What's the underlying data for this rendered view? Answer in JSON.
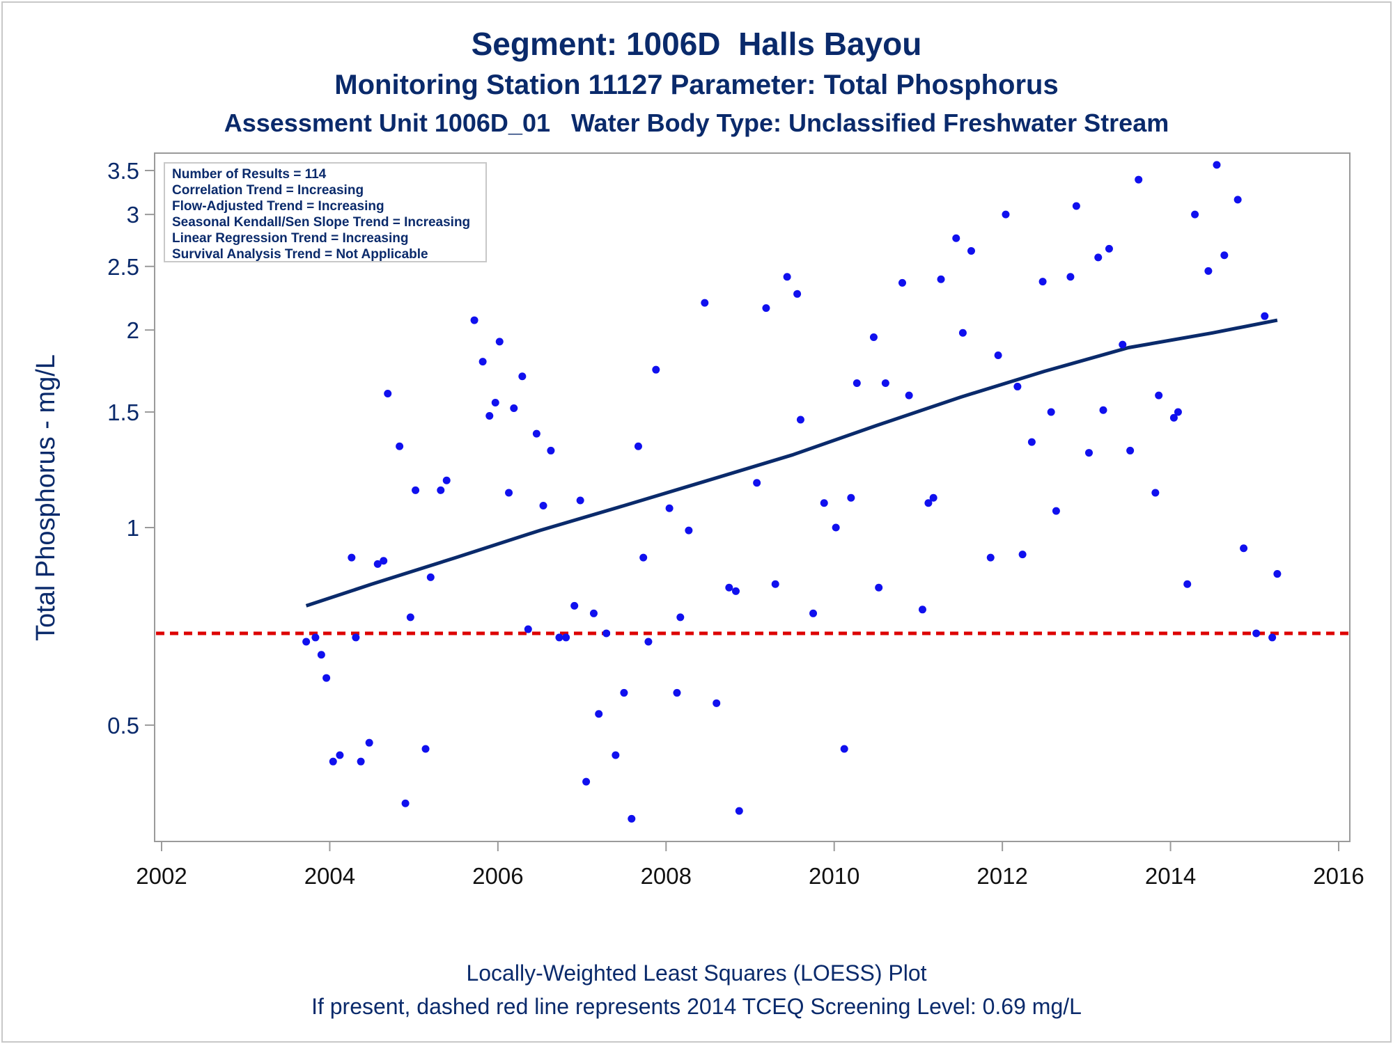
{
  "titles": {
    "line1": "Segment: 1006D  Halls Bayou",
    "line2": "Monitoring Station 11127 Parameter: Total Phosphorus",
    "line3": "Assessment Unit 1006D_01   Water Body Type: Unclassified Freshwater Stream"
  },
  "footnotes": {
    "line1": "Locally-Weighted Least Squares (LOESS) Plot",
    "line2": "If present, dashed red line represents 2014 TCEQ Screening Level: 0.69 mg/L"
  },
  "colors": {
    "points": "#1010ee",
    "loess": "#0a2a6b",
    "screening_line": "#dd0000",
    "text": "#0a2a6b"
  },
  "chart_data": {
    "type": "scatter",
    "xlabel": "",
    "ylabel": "Total Phosphorus - mg/L",
    "y_scale": "log",
    "xlim": [
      2001.9,
      2016.1
    ],
    "ylim": [
      0.4,
      3.6
    ],
    "x_ticks": [
      2002,
      2004,
      2006,
      2008,
      2010,
      2012,
      2014,
      2016
    ],
    "y_ticks": [
      0.5,
      1,
      1.5,
      2,
      2.5,
      3,
      3.5
    ],
    "grid": false,
    "legend": {
      "placement": "top-left",
      "lines": [
        "Number of Results = 114",
        "Correlation Trend = Increasing",
        "Flow-Adjusted Trend = Increasing",
        "Seasonal Kendall/Sen Slope Trend = Increasing",
        "Linear Regression Trend = Increasing",
        "Survival Analysis Trend = Not Applicable"
      ]
    },
    "screening_level": 0.69,
    "series": [
      {
        "type": "scatter",
        "points": [
          [
            2003.72,
            0.67
          ],
          [
            2003.83,
            0.68
          ],
          [
            2003.9,
            0.64
          ],
          [
            2003.96,
            0.59
          ],
          [
            2004.04,
            0.44
          ],
          [
            2004.12,
            0.45
          ],
          [
            2004.26,
            0.9
          ],
          [
            2004.31,
            0.68
          ],
          [
            2004.37,
            0.44
          ],
          [
            2004.47,
            0.47
          ],
          [
            2004.57,
            0.88
          ],
          [
            2004.64,
            0.89
          ],
          [
            2004.69,
            1.6
          ],
          [
            2004.83,
            1.33
          ],
          [
            2004.9,
            0.38
          ],
          [
            2004.96,
            0.73
          ],
          [
            2005.02,
            1.14
          ],
          [
            2005.14,
            0.46
          ],
          [
            2005.2,
            0.84
          ],
          [
            2005.32,
            1.14
          ],
          [
            2005.39,
            1.18
          ],
          [
            2005.72,
            2.07
          ],
          [
            2005.82,
            1.79
          ],
          [
            2005.9,
            1.48
          ],
          [
            2005.97,
            1.55
          ],
          [
            2006.02,
            1.92
          ],
          [
            2006.13,
            1.13
          ],
          [
            2006.19,
            1.52
          ],
          [
            2006.29,
            1.7
          ],
          [
            2006.36,
            0.7
          ],
          [
            2006.46,
            1.39
          ],
          [
            2006.54,
            1.08
          ],
          [
            2006.63,
            1.31
          ],
          [
            2006.73,
            0.68
          ],
          [
            2006.81,
            0.68
          ],
          [
            2006.91,
            0.76
          ],
          [
            2006.98,
            1.1
          ],
          [
            2007.05,
            0.41
          ],
          [
            2007.14,
            0.74
          ],
          [
            2007.2,
            0.52
          ],
          [
            2007.29,
            0.69
          ],
          [
            2007.4,
            0.45
          ],
          [
            2007.5,
            0.56
          ],
          [
            2007.59,
            0.36
          ],
          [
            2007.67,
            1.33
          ],
          [
            2007.73,
            0.9
          ],
          [
            2007.79,
            0.67
          ],
          [
            2007.88,
            1.74
          ],
          [
            2008.04,
            1.07
          ],
          [
            2008.13,
            0.56
          ],
          [
            2008.17,
            0.73
          ],
          [
            2008.27,
            0.99
          ],
          [
            2008.46,
            2.2
          ],
          [
            2008.6,
            0.54
          ],
          [
            2008.75,
            0.81
          ],
          [
            2008.83,
            0.8
          ],
          [
            2008.87,
            0.37
          ],
          [
            2009.08,
            1.17
          ],
          [
            2009.19,
            2.16
          ],
          [
            2009.3,
            0.82
          ],
          [
            2009.44,
            2.41
          ],
          [
            2009.56,
            2.27
          ],
          [
            2009.6,
            1.46
          ],
          [
            2009.75,
            0.74
          ],
          [
            2009.88,
            1.09
          ],
          [
            2010.02,
            1.0
          ],
          [
            2010.12,
            0.46
          ],
          [
            2010.2,
            1.11
          ],
          [
            2010.27,
            1.66
          ],
          [
            2010.47,
            1.95
          ],
          [
            2010.53,
            0.81
          ],
          [
            2010.61,
            1.66
          ],
          [
            2010.81,
            2.36
          ],
          [
            2010.89,
            1.59
          ],
          [
            2011.05,
            0.75
          ],
          [
            2011.12,
            1.09
          ],
          [
            2011.18,
            1.11
          ],
          [
            2011.27,
            2.39
          ],
          [
            2011.45,
            2.76
          ],
          [
            2011.53,
            1.98
          ],
          [
            2011.63,
            2.64
          ],
          [
            2011.86,
            0.9
          ],
          [
            2011.95,
            1.83
          ],
          [
            2012.04,
            3.0
          ],
          [
            2012.18,
            1.64
          ],
          [
            2012.24,
            0.91
          ],
          [
            2012.35,
            1.35
          ],
          [
            2012.48,
            2.37
          ],
          [
            2012.58,
            1.5
          ],
          [
            2012.64,
            1.06
          ],
          [
            2012.81,
            2.41
          ],
          [
            2012.88,
            3.09
          ],
          [
            2013.03,
            1.3
          ],
          [
            2013.14,
            2.58
          ],
          [
            2013.2,
            1.51
          ],
          [
            2013.27,
            2.66
          ],
          [
            2013.43,
            1.9
          ],
          [
            2013.52,
            1.31
          ],
          [
            2013.62,
            3.39
          ],
          [
            2013.82,
            1.13
          ],
          [
            2013.86,
            1.59
          ],
          [
            2014.04,
            1.47
          ],
          [
            2014.09,
            1.5
          ],
          [
            2014.2,
            0.82
          ],
          [
            2014.29,
            3.0
          ],
          [
            2014.45,
            2.46
          ],
          [
            2014.55,
            3.57
          ],
          [
            2014.64,
            2.6
          ],
          [
            2014.8,
            3.16
          ],
          [
            2014.87,
            0.93
          ],
          [
            2015.02,
            0.69
          ],
          [
            2015.12,
            2.1
          ],
          [
            2015.21,
            0.68
          ],
          [
            2015.27,
            0.85
          ]
        ]
      },
      {
        "type": "line",
        "points": [
          [
            2003.72,
            0.76
          ],
          [
            2004.5,
            0.82
          ],
          [
            2005.5,
            0.9
          ],
          [
            2006.5,
            0.99
          ],
          [
            2007.5,
            1.08
          ],
          [
            2008.5,
            1.18
          ],
          [
            2009.5,
            1.29
          ],
          [
            2010.5,
            1.43
          ],
          [
            2011.5,
            1.58
          ],
          [
            2012.5,
            1.73
          ],
          [
            2013.5,
            1.88
          ],
          [
            2014.5,
            1.98
          ],
          [
            2015.27,
            2.07
          ]
        ]
      }
    ]
  }
}
